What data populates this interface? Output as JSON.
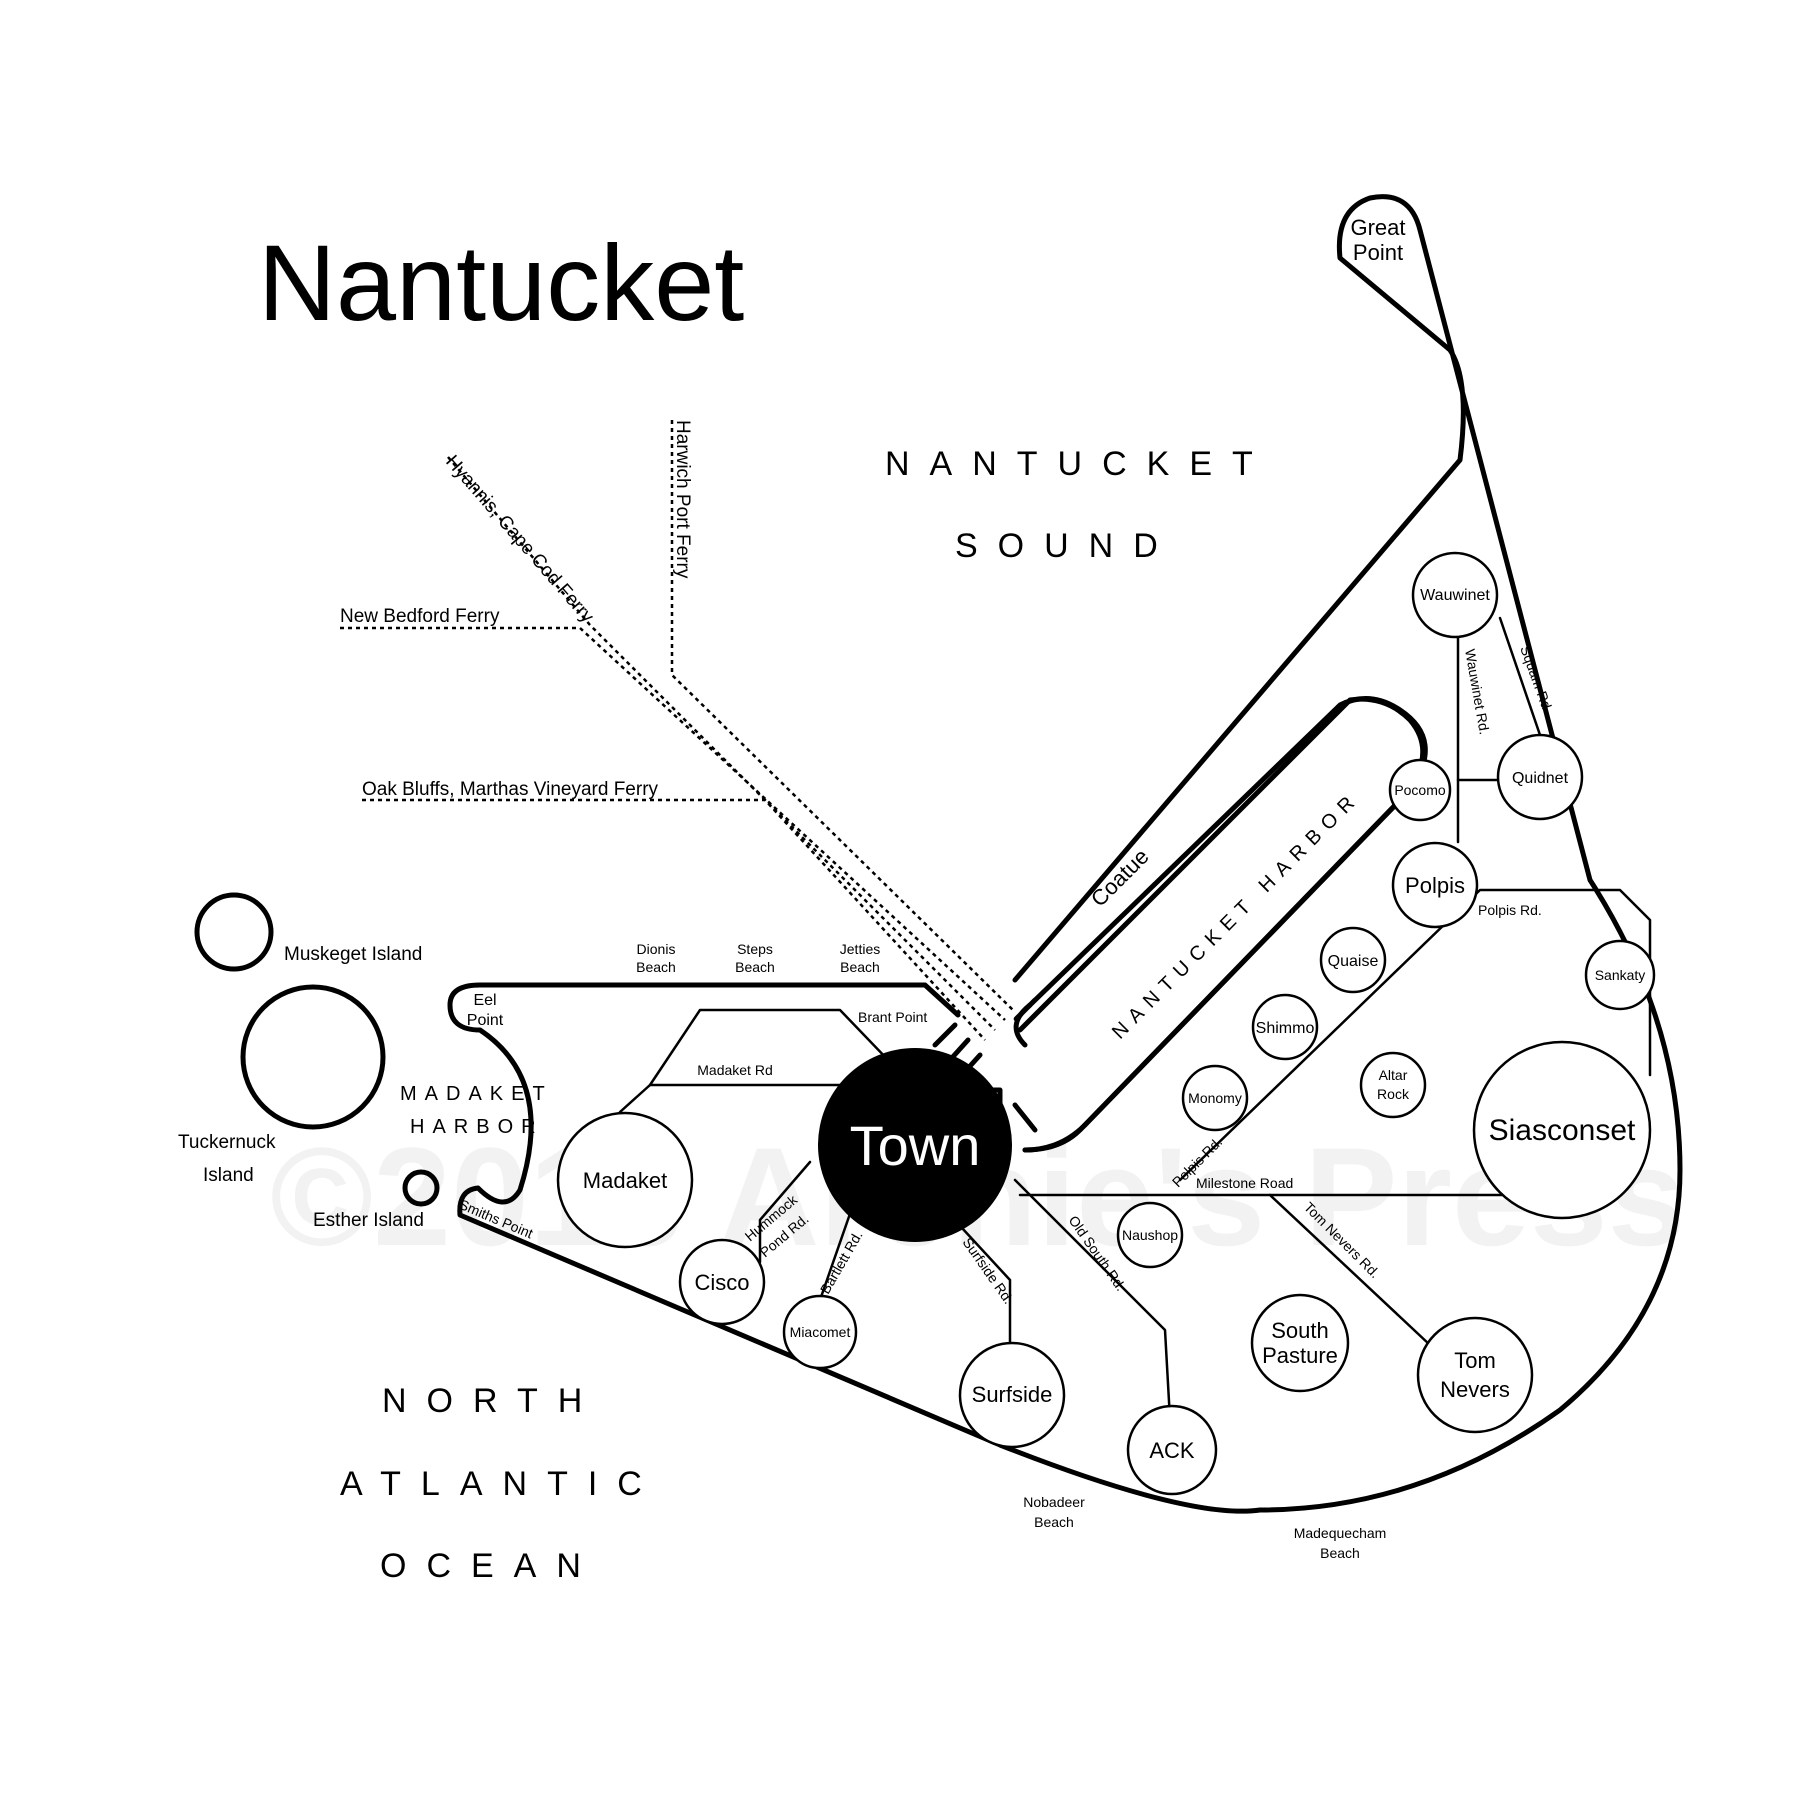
{
  "title": "Nantucket",
  "watermark": "©2016 Archie's Press",
  "waters": {
    "sound_line1": "NANTUCKET",
    "sound_line2": "SOUND",
    "ocean_line1": "NORTH",
    "ocean_line2": "ATLANTIC",
    "ocean_line3": "OCEAN",
    "harbor": "NANTUCKET HARBOR",
    "madaket_harbor_line1": "MADAKET",
    "madaket_harbor_line2": "HARBOR"
  },
  "ferries": {
    "hyannis": "Hyannis, Cape Cod Ferry",
    "harwich": "Harwich Port Ferry",
    "new_bedford": "New Bedford Ferry",
    "oak_bluffs": "Oak Bluffs, Marthas Vineyard Ferry"
  },
  "stops": {
    "town": "Town",
    "great_point_1": "Great",
    "great_point_2": "Point",
    "wauwinet": "Wauwinet",
    "pocomo": "Pocomo",
    "quidnet": "Quidnet",
    "polpis": "Polpis",
    "quaise": "Quaise",
    "sankaty": "Sankaty",
    "shimmo": "Shimmo",
    "altar_rock_1": "Altar",
    "altar_rock_2": "Rock",
    "monomy": "Monomy",
    "siasconset": "Siasconset",
    "naushop": "Naushop",
    "south_pasture_1": "South",
    "south_pasture_2": "Pasture",
    "tom_nevers_1": "Tom",
    "tom_nevers_2": "Nevers",
    "ack": "ACK",
    "surfside": "Surfside",
    "miacomet": "Miacomet",
    "cisco": "Cisco",
    "madaket": "Madaket",
    "coatue": "Coatue"
  },
  "landmarks": {
    "muskeget": "Muskeget Island",
    "tuckernuck_1": "Tuckernuck",
    "tuckernuck_2": "Island",
    "esther": "Esther Island",
    "eel_point_1": "Eel",
    "eel_point_2": "Point",
    "smiths_point": "Smiths Point",
    "dionis_1": "Dionis",
    "dionis_2": "Beach",
    "steps_1": "Steps",
    "steps_2": "Beach",
    "jetties_1": "Jetties",
    "jetties_2": "Beach",
    "brant_point": "Brant Point",
    "nobadeer_1": "Nobadeer",
    "nobadeer_2": "Beach",
    "madequecham_1": "Madequecham",
    "madequecham_2": "Beach"
  },
  "roads": {
    "madaket_rd": "Madaket Rd",
    "hummock_1": "Hummock",
    "hummock_2": "Pond Rd.",
    "bartlett": "Bartlett Rd.",
    "surfside_rd": "Surfside Rd.",
    "old_south": "Old South Rd.",
    "polpis_rd_a": "Polpis Rd.",
    "polpis_rd_b": "Polpis Rd.",
    "milestone": "Milestone Road",
    "tom_nevers_rd": "Tom Nevers Rd.",
    "wauwinet_rd": "Wauwinet Rd.",
    "squam_rd": "Squam Rd"
  }
}
